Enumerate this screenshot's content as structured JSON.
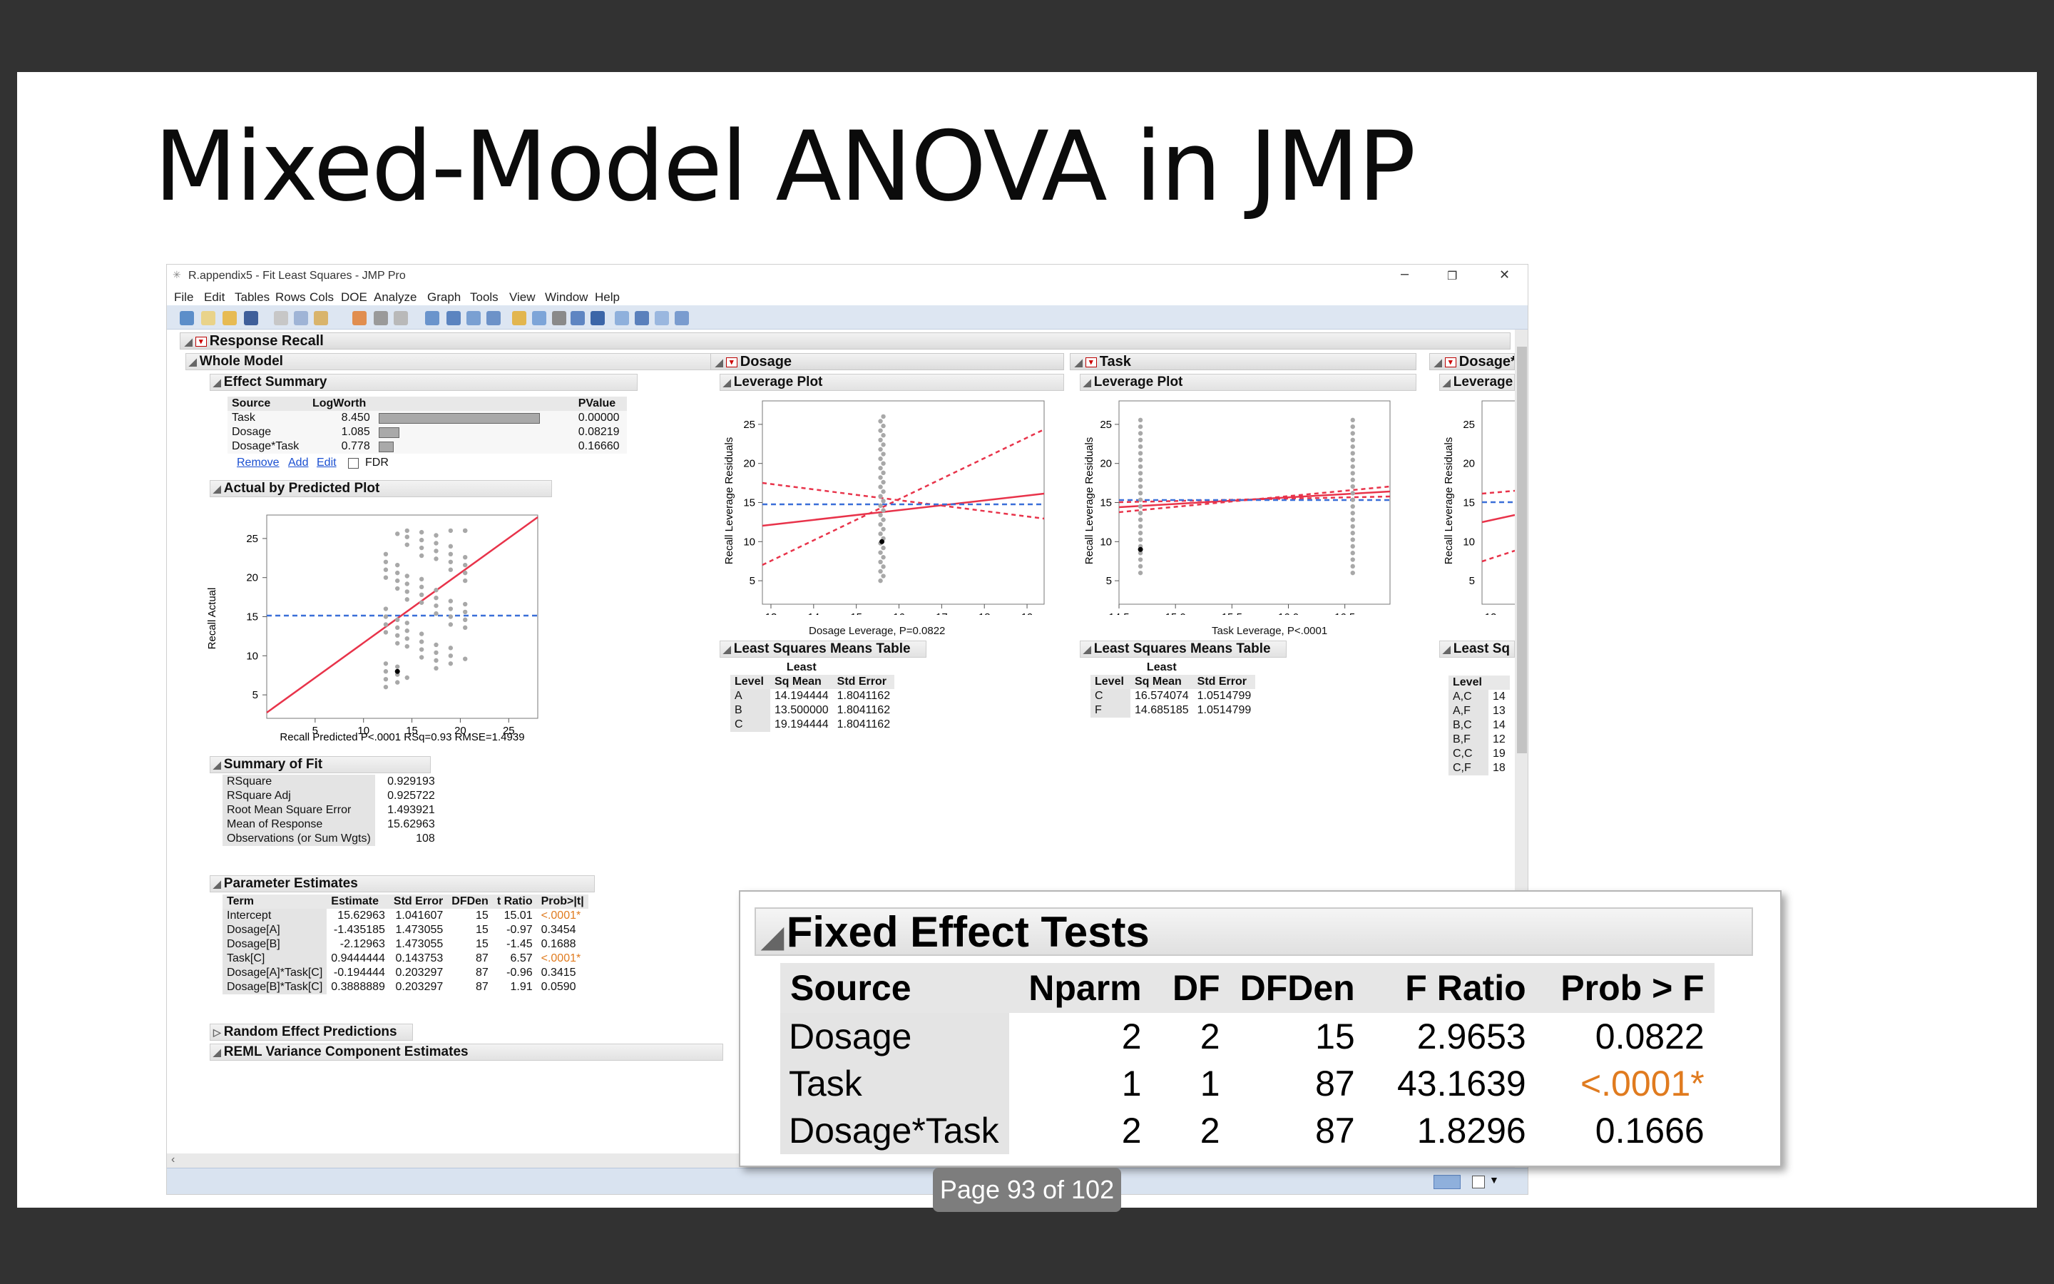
{
  "slide": {
    "title": "Mixed-Model ANOVA in JMP",
    "page_indicator": "Page 93 of 102"
  },
  "window": {
    "title": "R.appendix5 - Fit Least Squares - JMP Pro",
    "minimize": "–",
    "restore": "❐",
    "close": "✕"
  },
  "menu": [
    "File",
    "Edit",
    "Tables",
    "Rows",
    "Cols",
    "DOE",
    "Analyze",
    "Graph",
    "Tools",
    "View",
    "Window",
    "Help"
  ],
  "report": {
    "response_title": "Response Recall",
    "whole_model": "Whole Model",
    "effect_summary": {
      "title": "Effect Summary",
      "headers": [
        "Source",
        "LogWorth",
        "",
        "PValue"
      ],
      "rows": [
        {
          "source": "Task",
          "logworth": "8.450",
          "pvalue": "0.00000",
          "bar": 8.45
        },
        {
          "source": "Dosage",
          "logworth": "1.085",
          "pvalue": "0.08219",
          "bar": 1.085
        },
        {
          "source": "Dosage*Task",
          "logworth": "0.778",
          "pvalue": "0.16660",
          "bar": 0.778
        }
      ],
      "links": [
        "Remove",
        "Add",
        "Edit"
      ],
      "fdr_label": "FDR"
    },
    "actual_by_predicted": {
      "title": "Actual by Predicted Plot",
      "ylabel": "Recall Actual",
      "xlabel": "Recall Predicted P<.0001 RSq=0.93 RMSE=1.4939",
      "xticks": [
        "5",
        "10",
        "15",
        "20",
        "25"
      ],
      "yticks": [
        "5",
        "10",
        "15",
        "20",
        "25"
      ]
    },
    "summary_of_fit": {
      "title": "Summary of Fit",
      "rows": [
        {
          "label": "RSquare",
          "value": "0.929193"
        },
        {
          "label": "RSquare Adj",
          "value": "0.925722"
        },
        {
          "label": "Root Mean Square Error",
          "value": "1.493921"
        },
        {
          "label": "Mean of Response",
          "value": "15.62963"
        },
        {
          "label": "Observations (or Sum Wgts)",
          "value": "108"
        }
      ]
    },
    "parameter_estimates": {
      "title": "Parameter Estimates",
      "headers": [
        "Term",
        "Estimate",
        "Std Error",
        "DFDen",
        "t Ratio",
        "Prob>|t|"
      ],
      "rows": [
        [
          "Intercept",
          "15.62963",
          "1.041607",
          "15",
          "15.01",
          "<.0001*"
        ],
        [
          "Dosage[A]",
          "-1.435185",
          "1.473055",
          "15",
          "-0.97",
          "0.3454"
        ],
        [
          "Dosage[B]",
          "-2.12963",
          "1.473055",
          "15",
          "-1.45",
          "0.1688"
        ],
        [
          "Task[C]",
          "0.9444444",
          "0.143753",
          "87",
          "6.57",
          "<.0001*"
        ],
        [
          "Dosage[A]*Task[C]",
          "-0.194444",
          "0.203297",
          "87",
          "-0.96",
          "0.3415"
        ],
        [
          "Dosage[B]*Task[C]",
          "0.3888889",
          "0.203297",
          "87",
          "1.91",
          "0.0590"
        ]
      ]
    },
    "random_effect_predictions": "Random Effect Predictions",
    "reml": "REML Variance Component Estimates",
    "dosage": {
      "title": "Dosage",
      "leverage_title": "Leverage Plot",
      "ylabel": "Recall Leverage Residuals",
      "xlabel": "Dosage Leverage, P=0.0822",
      "xticks": [
        "13",
        "14",
        "15",
        "16",
        "17",
        "18",
        "19"
      ],
      "yticks": [
        "5",
        "10",
        "15",
        "20",
        "25"
      ],
      "lsm_title": "Least Squares Means Table",
      "lsm_headers": [
        "Level",
        "Least Sq Mean",
        "Std Error"
      ],
      "lsm_rows": [
        [
          "A",
          "14.194444",
          "1.8041162"
        ],
        [
          "B",
          "13.500000",
          "1.8041162"
        ],
        [
          "C",
          "19.194444",
          "1.8041162"
        ]
      ]
    },
    "task": {
      "title": "Task",
      "leverage_title": "Leverage Plot",
      "ylabel": "Recall Leverage Residuals",
      "xlabel": "Task Leverage, P<.0001",
      "xticks": [
        "14.5",
        "15.0",
        "15.5",
        "16.0",
        "16.5"
      ],
      "yticks": [
        "5",
        "10",
        "15",
        "20",
        "25"
      ],
      "lsm_title": "Least Squares Means Table",
      "lsm_headers": [
        "Level",
        "Least Sq Mean",
        "Std Error"
      ],
      "lsm_rows": [
        [
          "C",
          "16.574074",
          "1.0514799"
        ],
        [
          "F",
          "14.685185",
          "1.0514799"
        ]
      ]
    },
    "dosage_task": {
      "title": "Dosage*",
      "leverage_title": "Leverage",
      "ylabel": "Recall Leverage Residuals",
      "xtick": "12",
      "yticks": [
        "5",
        "10",
        "15",
        "20",
        "25"
      ],
      "lsm_title": "Least Sq",
      "lsm_header": "Level",
      "levels": [
        "A,C",
        "A,F",
        "B,C",
        "B,F",
        "C,C",
        "C,F"
      ],
      "partial_values": [
        "14",
        "13",
        "14",
        "12",
        "19",
        "18"
      ]
    }
  },
  "fixed_effect_tests": {
    "title": "Fixed Effect Tests",
    "headers": [
      "Source",
      "Nparm",
      "DF",
      "DFDen",
      "F Ratio",
      "Prob > F"
    ],
    "rows": [
      [
        "Dosage",
        "2",
        "2",
        "15",
        "2.9653",
        "0.0822"
      ],
      [
        "Task",
        "1",
        "1",
        "87",
        "43.1639",
        "<.0001*"
      ],
      [
        "Dosage*Task",
        "2",
        "2",
        "87",
        "1.8296",
        "0.1666"
      ]
    ]
  },
  "colors": {
    "fit_line": "#e8334a",
    "mean_line": "#3a6fd8",
    "points": "#a8a8a8",
    "significant": "#e07b1f"
  }
}
